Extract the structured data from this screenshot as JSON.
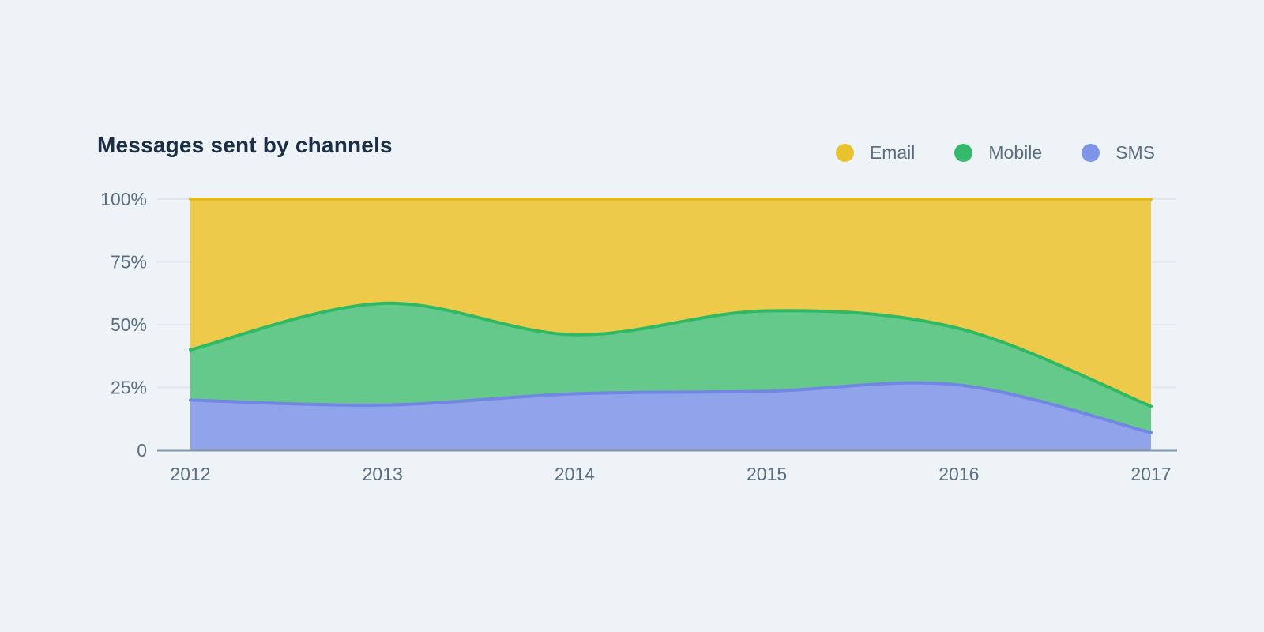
{
  "page": {
    "background": "#eef3f8"
  },
  "header": {
    "title": "Messages sent by channels",
    "title_color": "#1b2e45"
  },
  "legend": {
    "position": "top-right",
    "items": [
      {
        "label": "Email",
        "color": "#e9c32d"
      },
      {
        "label": "Mobile",
        "color": "#35b96d"
      },
      {
        "label": "SMS",
        "color": "#7e94e8"
      }
    ]
  },
  "chart_data": {
    "type": "area",
    "stacked": true,
    "percent": true,
    "curve": "smooth",
    "title": "Messages sent by channels",
    "x": [
      2012,
      2013,
      2014,
      2015,
      2016,
      2017
    ],
    "series": [
      {
        "name": "Email",
        "fill": "#edca4a",
        "stroke": "#e2b822",
        "values": [
          60,
          41.5,
          54,
          44.5,
          51.5,
          82.5
        ]
      },
      {
        "name": "Mobile",
        "fill": "#66c98c",
        "stroke": "#2fb965",
        "values": [
          20,
          40.5,
          23.5,
          32,
          22.5,
          10.5
        ]
      },
      {
        "name": "SMS",
        "fill": "#91a3ea",
        "stroke": "#7286e4",
        "values": [
          20,
          18,
          22.5,
          23.5,
          26,
          7
        ]
      }
    ],
    "stack_order_bottom_to_top": [
      "SMS",
      "Mobile",
      "Email"
    ],
    "ylim": [
      0,
      100
    ],
    "yticks": [
      "100%",
      "75%",
      "50%",
      "25%",
      "0"
    ],
    "ytick_values": [
      100,
      75,
      50,
      25,
      0
    ],
    "grid": "horizontal",
    "grid_color": "#e2e7ee",
    "axis_line_color": "#8496a8",
    "tick_label_color": "#5b6e80",
    "legend_position": "top-right"
  }
}
